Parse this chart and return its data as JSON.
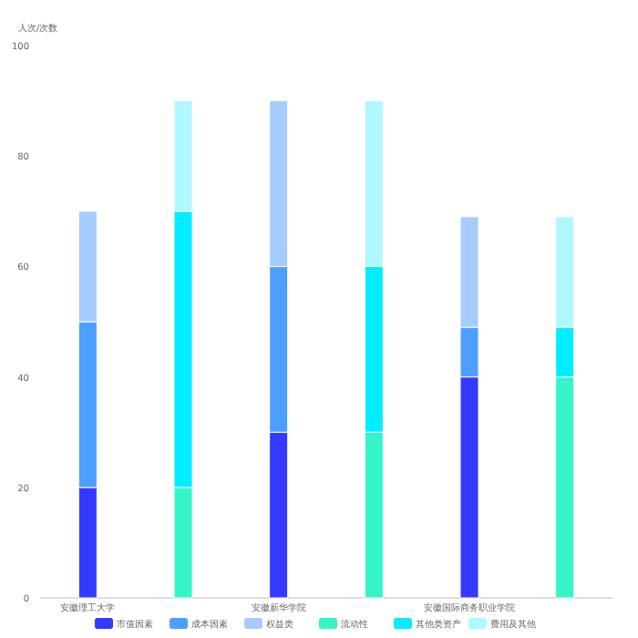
{
  "chart_data": {
    "type": "bar",
    "stacked": true,
    "ylabel": "人次/次数",
    "categories": [
      "安徽理工大学",
      null,
      "安徽新华学院",
      null,
      "安徽国际商务职业学院",
      null
    ],
    "series": [
      {
        "name": "市值因素",
        "color": "#3339ff",
        "values": [
          20,
          null,
          30,
          null,
          40,
          null
        ]
      },
      {
        "name": "成本因素",
        "color": "#4d9fff",
        "values": [
          30,
          null,
          30,
          null,
          9,
          null
        ]
      },
      {
        "name": "权益类",
        "color": "#a6ccff",
        "values": [
          20,
          null,
          30,
          null,
          20,
          null
        ]
      },
      {
        "name": "流动性",
        "color": "#33f5c8",
        "values": [
          null,
          20,
          null,
          30,
          null,
          40
        ]
      },
      {
        "name": "其他类资产",
        "color": "#00eeff",
        "values": [
          null,
          50,
          null,
          30,
          null,
          9
        ]
      },
      {
        "name": "费用及其他",
        "color": "#b0f7ff",
        "values": [
          null,
          20,
          null,
          30,
          null,
          20
        ]
      }
    ],
    "ylim": [
      0,
      100
    ],
    "yticks": [
      0,
      20,
      40,
      60,
      80,
      100
    ],
    "grid": false,
    "legend": "bottom"
  }
}
